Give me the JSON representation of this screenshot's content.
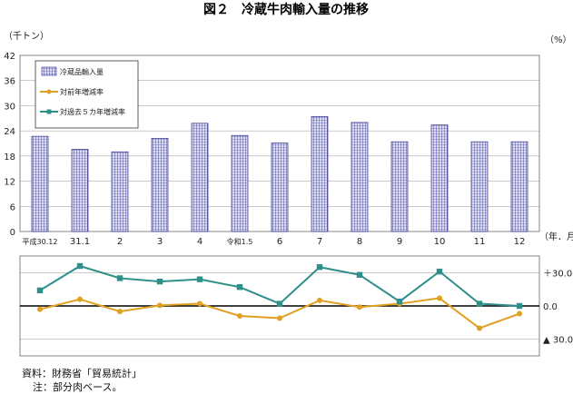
{
  "chart_data": {
    "type": "bar",
    "title": "図２　冷蔵牛肉輸入量の推移",
    "y_unit_left": "（千トン）",
    "y_unit_right": "（%）",
    "x_unit": "（年．月）",
    "categories": [
      "平成30.12",
      "31.1",
      "2",
      "3",
      "4",
      "令和1.5",
      "6",
      "7",
      "8",
      "9",
      "10",
      "11",
      "12"
    ],
    "ylim": [
      0,
      42
    ],
    "yticks": [
      0,
      6,
      12,
      18,
      24,
      30,
      36,
      42
    ],
    "grid": true,
    "legend_position": "top-left",
    "series": [
      {
        "name": "冷蔵品輸入量",
        "kind": "bar",
        "values": [
          22.7,
          19.6,
          19.0,
          22.2,
          25.8,
          22.9,
          21.1,
          27.4,
          26.0,
          21.4,
          25.4,
          21.4,
          21.4
        ]
      },
      {
        "name": "対前年増減率",
        "kind": "line",
        "values": [
          -3.0,
          6.0,
          -5.0,
          0.5,
          2.0,
          -9.0,
          -11.0,
          5.0,
          -1.0,
          2.0,
          7.0,
          -20.0,
          -7.0
        ]
      },
      {
        "name": "対過去５カ年増減率",
        "kind": "line",
        "values": [
          14.0,
          36.0,
          25.0,
          22.0,
          24.0,
          17.0,
          2.0,
          35.0,
          28.0,
          4.0,
          31.0,
          2.0,
          0.0
        ]
      }
    ],
    "y2lim": [
      -45,
      45
    ],
    "y2ticks": [
      {
        "value": 30,
        "label": "＋30.0"
      },
      {
        "value": 0,
        "label": "0.0"
      },
      {
        "value": -30,
        "label": "▲ 30.0"
      }
    ],
    "colors": {
      "bar_fill": "#dcdcf4",
      "bar_stroke": "#2e2e8a",
      "line_yoy": "#e0a020",
      "line_5yr": "#2f8f8a",
      "grid": "#999999",
      "frame": "#666666"
    }
  },
  "footnotes": {
    "source": "資料：財務省「貿易統計」",
    "note": "注：部分肉ベース。"
  }
}
